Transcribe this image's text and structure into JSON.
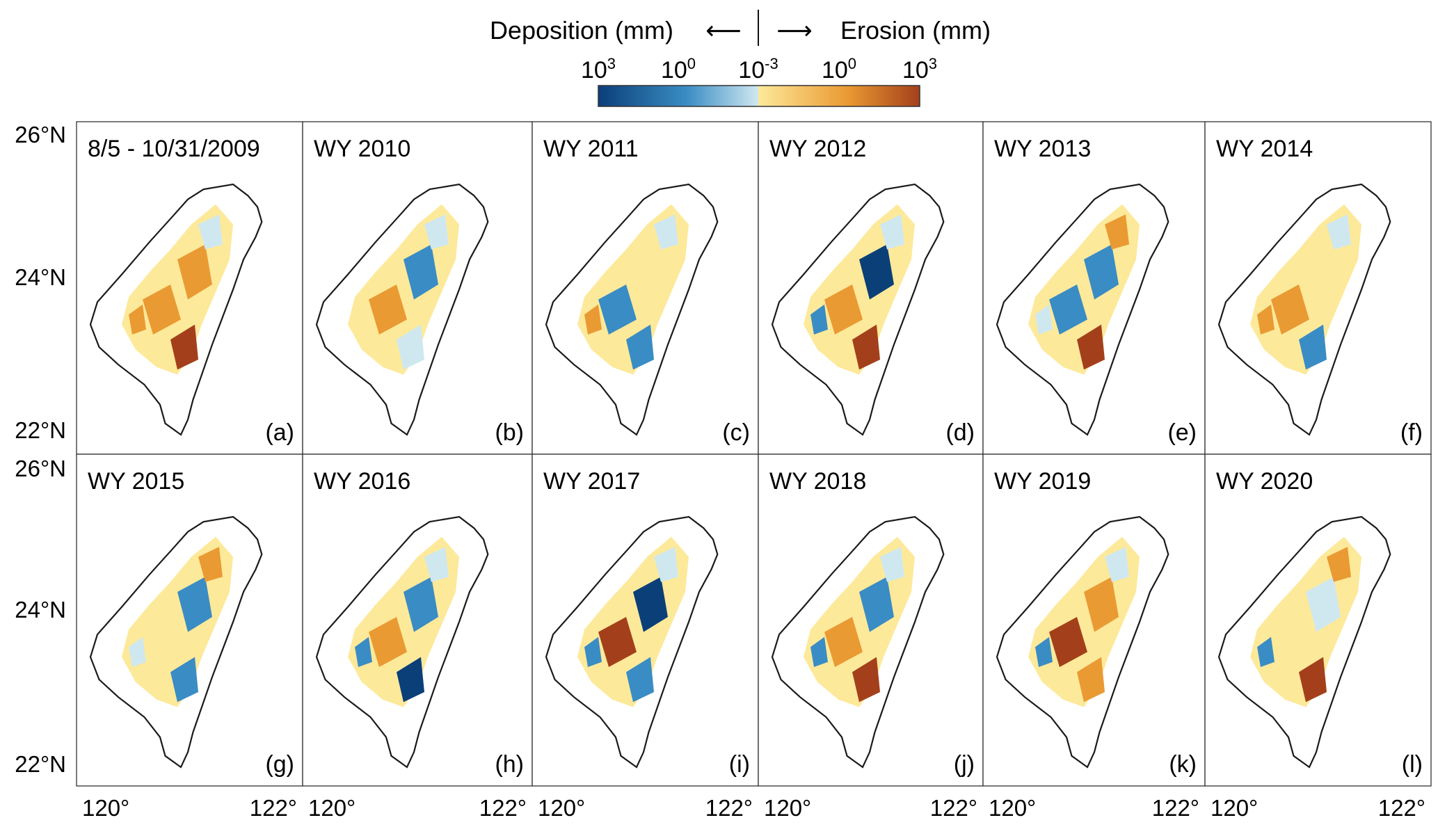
{
  "legend": {
    "deposition_label": "Deposition (mm)",
    "erosion_label": "Erosion (mm)",
    "left_arrow": "⟵",
    "right_arrow": "⟶",
    "ticks": [
      {
        "base": "10",
        "exp": "3"
      },
      {
        "base": "10",
        "exp": "0"
      },
      {
        "base": "10",
        "exp": "-3"
      },
      {
        "base": "10",
        "exp": "0"
      },
      {
        "base": "10",
        "exp": "3"
      }
    ],
    "colors": {
      "deposition_max": "#0b3f78",
      "deposition_mid": "#3a8cc4",
      "deposition_min": "#cfe8f0",
      "erosion_min": "#fde99a",
      "erosion_mid": "#ea9a33",
      "erosion_max": "#a3401b"
    }
  },
  "axes": {
    "lat_labels": [
      "26°N",
      "24°N",
      "22°N"
    ],
    "lon_labels": [
      "120°",
      "122°"
    ]
  },
  "panels": [
    {
      "title": "8/5 - 10/31/2009",
      "letter": "(a)"
    },
    {
      "title": "WY 2010",
      "letter": "(b)"
    },
    {
      "title": "WY 2011",
      "letter": "(c)"
    },
    {
      "title": "WY 2012",
      "letter": "(d)"
    },
    {
      "title": "WY 2013",
      "letter": "(e)"
    },
    {
      "title": "WY 2014",
      "letter": "(f)"
    },
    {
      "title": "WY 2015",
      "letter": "(g)"
    },
    {
      "title": "WY 2016",
      "letter": "(h)"
    },
    {
      "title": "WY 2017",
      "letter": "(i)"
    },
    {
      "title": "WY 2018",
      "letter": "(j)"
    },
    {
      "title": "WY 2019",
      "letter": "(k)"
    },
    {
      "title": "WY 2020",
      "letter": "(l)"
    }
  ]
}
